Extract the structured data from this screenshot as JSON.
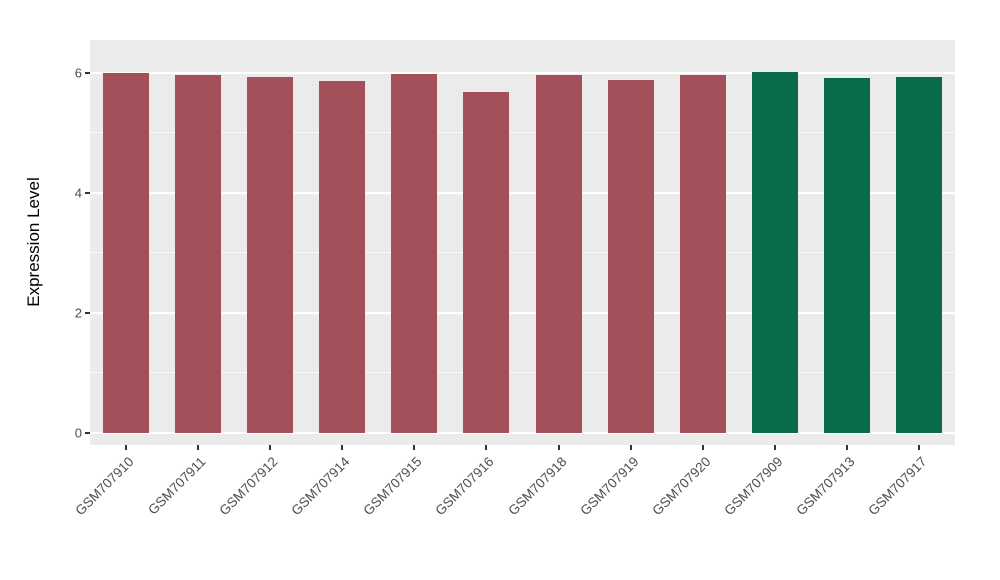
{
  "chart_data": {
    "type": "bar",
    "title": "",
    "xlabel": "",
    "ylabel": "Expression Level",
    "ylim": [
      0,
      6.3
    ],
    "yticks": [
      0,
      2,
      4,
      6
    ],
    "minor_yticks": [
      1,
      3,
      5
    ],
    "categories": [
      "GSM707910",
      "GSM707911",
      "GSM707912",
      "GSM707914",
      "GSM707915",
      "GSM707916",
      "GSM707918",
      "GSM707919",
      "GSM707920",
      "GSM707909",
      "GSM707913",
      "GSM707917"
    ],
    "values": [
      6.0,
      5.97,
      5.94,
      5.86,
      5.98,
      5.68,
      5.96,
      5.88,
      5.97,
      6.02,
      5.92,
      5.94
    ],
    "groups": [
      "A",
      "A",
      "A",
      "A",
      "A",
      "A",
      "A",
      "A",
      "A",
      "B",
      "B",
      "B"
    ],
    "group_colors": {
      "A": "#A4505A",
      "B": "#0A6B4C"
    },
    "panel_background": "#EBEBEB",
    "grid_color": "#FFFFFF",
    "grid": "on",
    "legend": "none",
    "tick_color": "#333333",
    "axis_text_color": "#4D4D4D"
  }
}
